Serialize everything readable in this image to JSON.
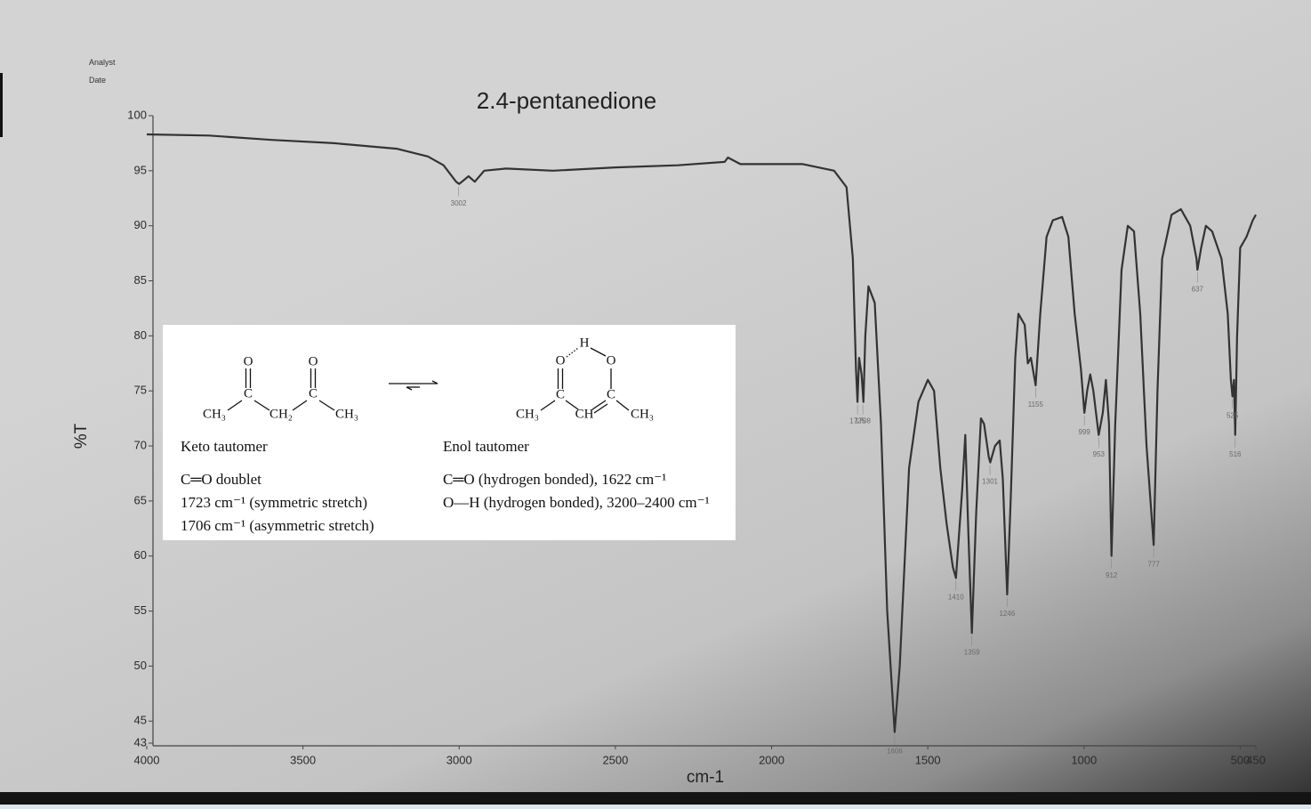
{
  "header": {
    "analyst": "Analyst",
    "date": "Date"
  },
  "chart_data": {
    "type": "line",
    "title": "2.4-pentanedione",
    "xlabel": "cm-1",
    "ylabel": "%T",
    "color": "#333333",
    "x": [
      4000,
      3800,
      3600,
      3400,
      3200,
      3100,
      3050,
      3010,
      3000,
      2970,
      2950,
      2920,
      2850,
      2700,
      2500,
      2300,
      2150,
      2140,
      2100,
      1900,
      1800,
      1760,
      1740,
      1730,
      1725,
      1720,
      1712,
      1706,
      1700,
      1690,
      1670,
      1650,
      1630,
      1606,
      1590,
      1560,
      1530,
      1500,
      1480,
      1460,
      1440,
      1420,
      1410,
      1390,
      1380,
      1370,
      1359,
      1345,
      1330,
      1320,
      1305,
      1300,
      1285,
      1270,
      1260,
      1246,
      1235,
      1220,
      1210,
      1190,
      1180,
      1170,
      1155,
      1140,
      1120,
      1100,
      1070,
      1050,
      1030,
      1010,
      999,
      990,
      980,
      970,
      953,
      940,
      930,
      920,
      912,
      900,
      880,
      860,
      840,
      820,
      800,
      777,
      765,
      750,
      720,
      690,
      660,
      640,
      637,
      625,
      610,
      590,
      560,
      540,
      530,
      525,
      520,
      516,
      510,
      500,
      480,
      460,
      450
    ],
    "values": [
      98.3,
      98.2,
      97.8,
      97.5,
      97,
      96.3,
      95.5,
      94,
      93.8,
      94.5,
      94,
      95,
      95.2,
      95,
      95.3,
      95.5,
      95.8,
      96.2,
      95.6,
      95.6,
      95,
      93.5,
      87,
      77,
      74,
      78,
      76.5,
      74,
      80,
      84.5,
      83,
      72,
      55,
      44,
      50,
      68,
      74,
      76,
      75,
      68,
      63,
      59,
      58,
      66,
      71,
      62,
      53,
      64,
      72.5,
      72,
      69,
      68.5,
      70,
      70.5,
      67,
      56.5,
      65,
      78,
      82,
      81,
      77.5,
      78,
      75.5,
      82,
      89,
      90.5,
      90.8,
      89,
      82,
      77,
      73,
      75,
      76.5,
      75,
      71,
      73,
      76,
      72,
      60,
      72,
      86,
      90,
      89.5,
      82,
      70,
      61,
      75,
      87,
      91,
      91.5,
      90,
      87,
      86,
      88,
      90,
      89.5,
      87,
      82,
      76,
      74.5,
      76,
      71,
      80,
      88,
      89,
      90.5,
      91
    ],
    "peaks": [
      3002,
      1725,
      1708,
      1606,
      1410,
      1359,
      1301,
      1246,
      1155,
      999,
      953,
      912,
      777,
      637,
      525,
      516
    ],
    "xlim": [
      4000,
      450
    ],
    "xticks": [
      4000,
      3500,
      3000,
      2500,
      2000,
      1500,
      1000,
      500,
      450
    ],
    "ylim": [
      43,
      100
    ],
    "yticks": [
      43,
      45,
      50,
      55,
      60,
      65,
      70,
      75,
      80,
      85,
      90,
      95,
      100
    ],
    "grid": false
  },
  "inset": {
    "keto": {
      "atoms": [
        "O",
        "O",
        "C",
        "C",
        "CH₃",
        "CH₂",
        "CH₃"
      ],
      "name": "Keto tautomer",
      "lines": [
        "C═O doublet",
        "1723 cm⁻¹ (symmetric stretch)",
        "1706 cm⁻¹ (asymmetric stretch)"
      ]
    },
    "enol": {
      "atoms": [
        "H",
        "O",
        "O",
        "C",
        "C",
        "CH₃",
        "CH",
        "CH₃"
      ],
      "name": "Enol tautomer",
      "lines": [
        "C═O (hydrogen bonded), 1622 cm⁻¹",
        "O—H (hydrogen bonded), 3200–2400 cm⁻¹"
      ]
    }
  }
}
